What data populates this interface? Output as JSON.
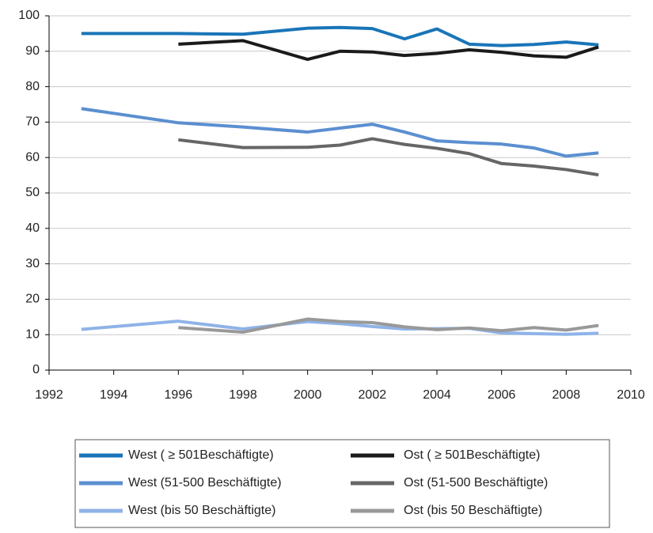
{
  "chart_data": {
    "type": "line",
    "x": [
      1993,
      1996,
      1998,
      2000,
      2001,
      2002,
      2003,
      2004,
      2005,
      2006,
      2007,
      2008,
      2009
    ],
    "series": [
      {
        "name": "West ( ≥ 501Beschäftigte)",
        "color": "#1a75b8",
        "values": [
          95,
          95,
          94.8,
          96.5,
          96.7,
          96.4,
          93.5,
          96.3,
          92,
          91.6,
          91.9,
          92.6,
          91.8
        ]
      },
      {
        "name": "Ost ( ≥ 501Beschäftigte)",
        "color": "#1a1a1a",
        "values": [
          null,
          92,
          93,
          87.7,
          90,
          89.8,
          88.8,
          89.4,
          90.4,
          89.7,
          88.7,
          88.3,
          91.2
        ]
      },
      {
        "name": "West (51-500 Beschäftigte)",
        "color": "#5b8fd0",
        "values": [
          73.8,
          69.8,
          68.6,
          67.2,
          68.3,
          69.4,
          67.2,
          64.7,
          64.2,
          63.8,
          62.7,
          60.4,
          61.3
        ]
      },
      {
        "name": "Ost (51-500 Beschäftigte)",
        "color": "#666666",
        "values": [
          null,
          65,
          62.8,
          62.9,
          63.5,
          65.3,
          63.7,
          62.6,
          61.1,
          58.3,
          57.6,
          56.6,
          55.1
        ]
      },
      {
        "name": "West (bis 50 Beschäftigte)",
        "color": "#8fb3e8",
        "values": [
          11.5,
          13.8,
          11.6,
          13.7,
          13.1,
          12.3,
          11.6,
          11.7,
          11.8,
          10.5,
          10.3,
          10.1,
          10.4
        ]
      },
      {
        "name": "Ost (bis 50 Beschäftigte)",
        "color": "#999999",
        "values": [
          null,
          12,
          10.7,
          14.4,
          13.7,
          13.4,
          12.2,
          11.4,
          11.9,
          11.1,
          12,
          11.3,
          12.6
        ]
      }
    ],
    "xlim": [
      1992,
      2010
    ],
    "xticks": [
      1992,
      1994,
      1996,
      1998,
      2000,
      2002,
      2004,
      2006,
      2008,
      2010
    ],
    "ylim": [
      0,
      100
    ],
    "yticks": [
      0,
      10,
      20,
      30,
      40,
      50,
      60,
      70,
      80,
      90,
      100
    ],
    "grid": true
  }
}
